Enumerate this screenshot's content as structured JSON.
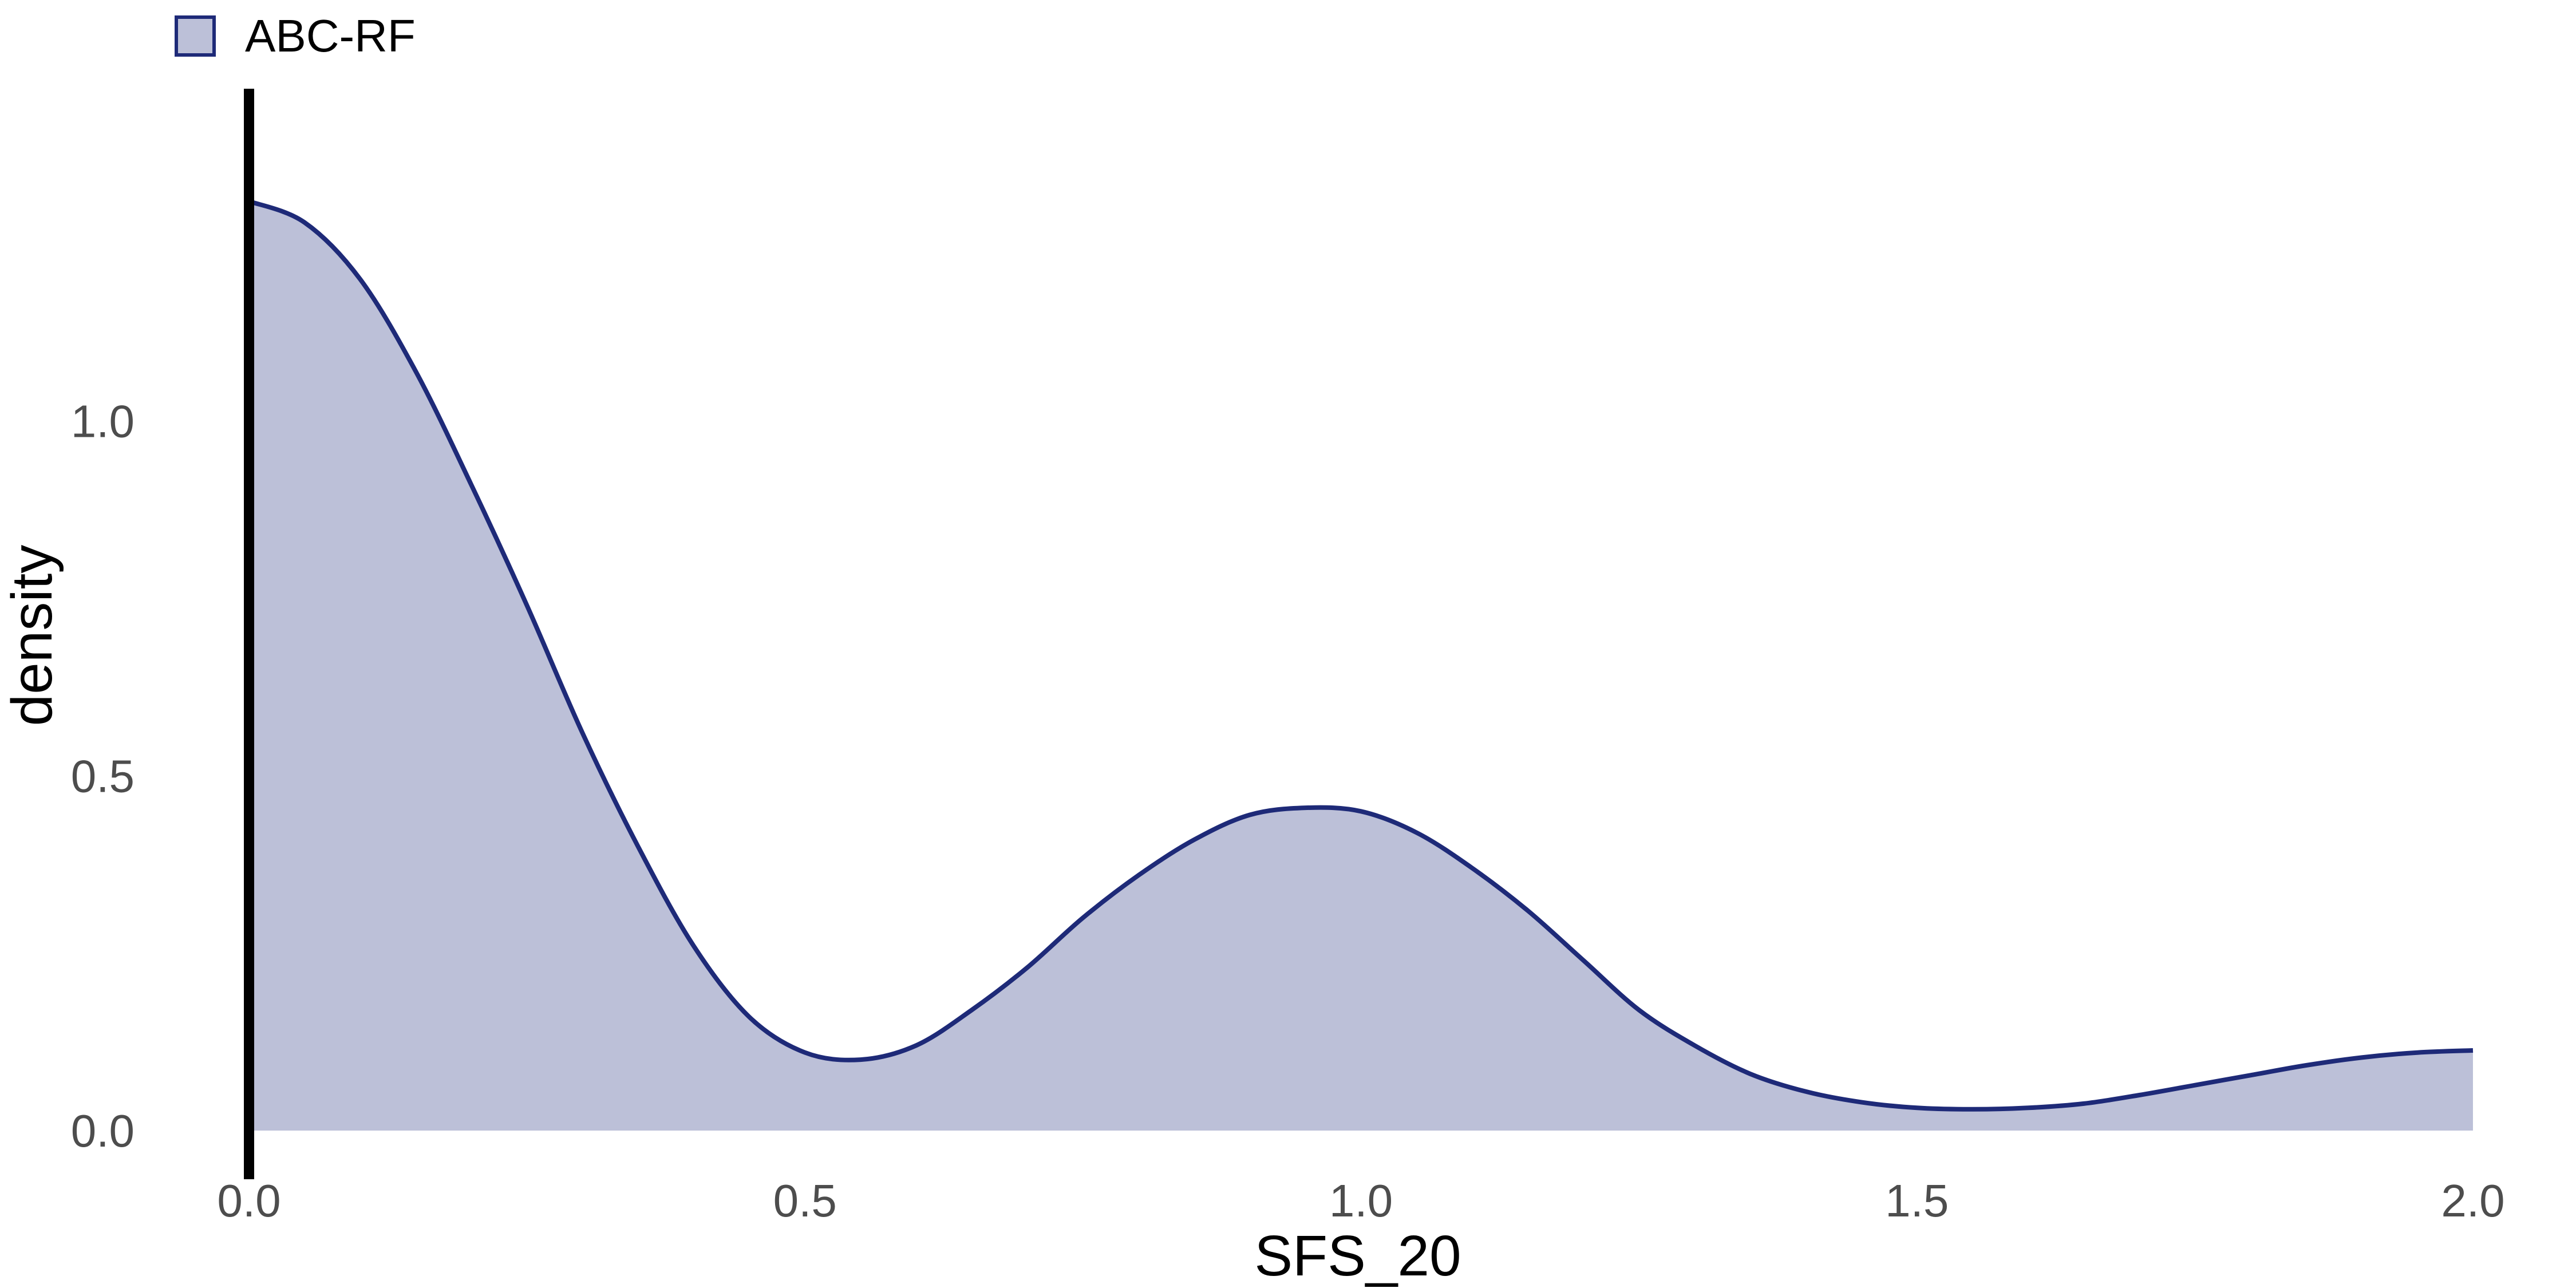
{
  "chart_data": {
    "type": "area",
    "title": "",
    "xlabel": "SFS_20",
    "ylabel": "density",
    "xlim": [
      0,
      2
    ],
    "ylim": [
      0,
      1.4
    ],
    "x_ticks": [
      "0.0",
      "0.5",
      "1.0",
      "1.5",
      "2.0"
    ],
    "y_ticks": [
      "0.0",
      "0.5",
      "1.0"
    ],
    "grid": false,
    "legend_position": "top-left",
    "series": [
      {
        "name": "ABC-RF",
        "fill_color": "#bcc0d8",
        "line_color": "#1e2a78",
        "x": [
          0.0,
          0.05,
          0.1,
          0.15,
          0.2,
          0.25,
          0.3,
          0.35,
          0.4,
          0.45,
          0.5,
          0.55,
          0.6,
          0.65,
          0.7,
          0.75,
          0.8,
          0.85,
          0.9,
          0.95,
          1.0,
          1.05,
          1.1,
          1.15,
          1.2,
          1.25,
          1.3,
          1.35,
          1.4,
          1.45,
          1.5,
          1.55,
          1.6,
          1.65,
          1.7,
          1.75,
          1.8,
          1.85,
          1.9,
          1.95,
          2.0
        ],
        "y": [
          1.31,
          1.28,
          1.2,
          1.07,
          0.91,
          0.74,
          0.56,
          0.4,
          0.26,
          0.16,
          0.11,
          0.1,
          0.12,
          0.17,
          0.23,
          0.3,
          0.36,
          0.41,
          0.445,
          0.455,
          0.45,
          0.42,
          0.37,
          0.31,
          0.24,
          0.17,
          0.12,
          0.08,
          0.055,
          0.04,
          0.032,
          0.03,
          0.032,
          0.038,
          0.05,
          0.064,
          0.078,
          0.092,
          0.103,
          0.11,
          0.113
        ]
      }
    ],
    "reference_line": {
      "x": 0.0,
      "color": "#000000"
    }
  }
}
